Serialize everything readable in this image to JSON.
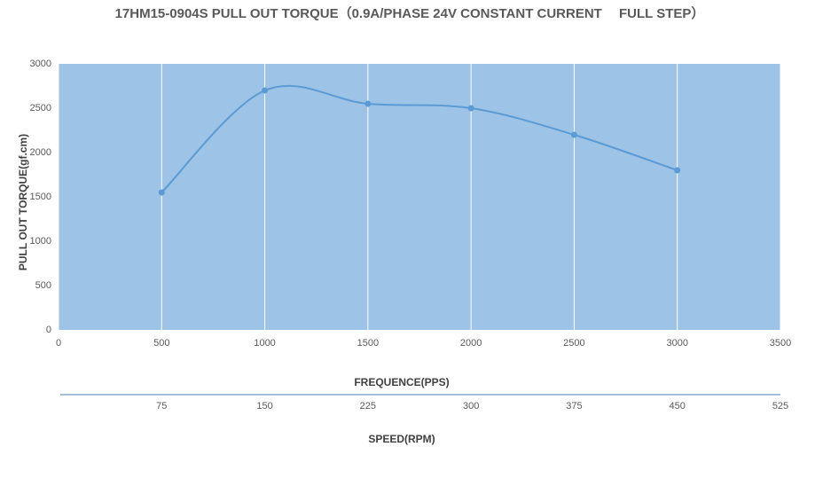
{
  "chart_data": {
    "type": "line",
    "title": "17HM15-0904S PULL OUT TORQUE（0.9A/PHASE 24V CONSTANT CURRENT　 FULL STEP）",
    "x_label": "FREQUENCE(PPS)",
    "x2_label": "SPEED(RPM)",
    "y_label": "PULL OUT TORQUE(gf.cm)",
    "x": [
      500,
      1000,
      1500,
      2000,
      2500,
      3000
    ],
    "values": [
      1550,
      2700,
      2550,
      2500,
      2200,
      1800
    ],
    "color": "#5b9bd5",
    "xlim": [
      0,
      3500
    ],
    "xticks": [
      0,
      500,
      1000,
      1500,
      2000,
      2500,
      3000,
      3500
    ],
    "x2lim": [
      0,
      525
    ],
    "x2ticks": [
      75,
      150,
      225,
      300,
      375,
      450,
      525
    ],
    "ylim": [
      0,
      3000
    ],
    "yticks": [
      0,
      500,
      1000,
      1500,
      2000,
      2500,
      3000
    ],
    "grid": "x",
    "smooth": true
  }
}
